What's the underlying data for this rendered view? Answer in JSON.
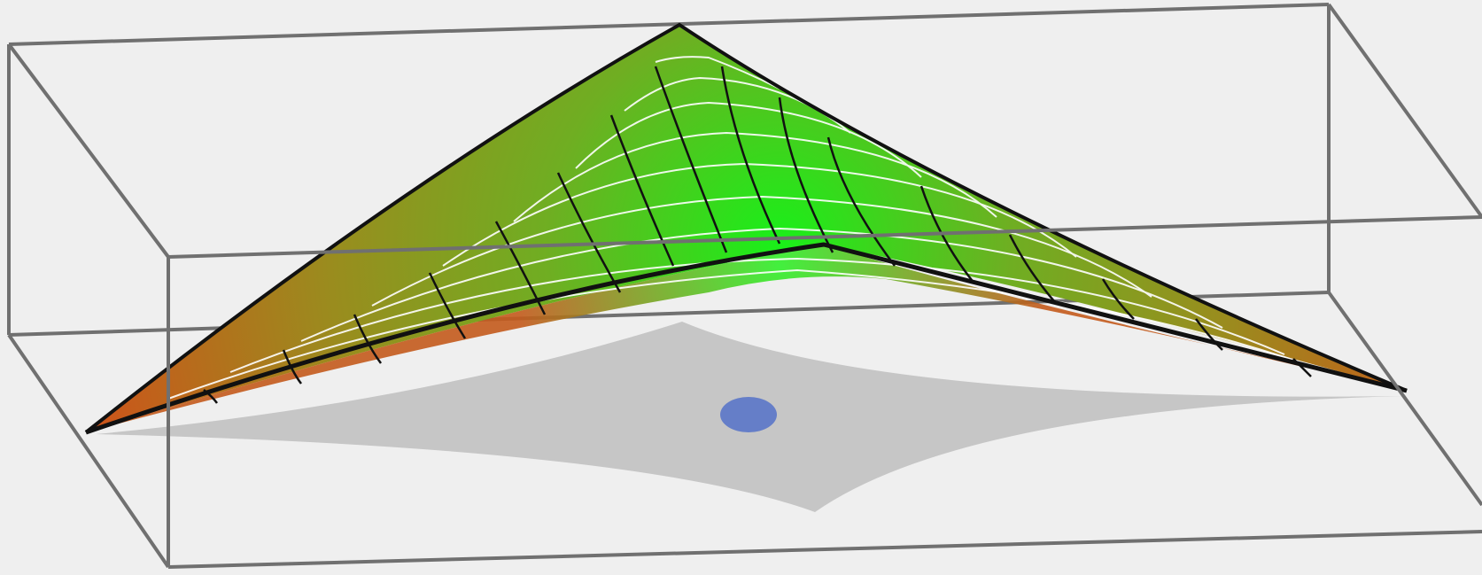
{
  "figure": {
    "kind": "3d-surface-plot",
    "description_visible": false,
    "background_color": "#efefef",
    "box_edge_color": "#6e6e6e",
    "surface_top_color": "#c2591b",
    "surface_mid_color": "#6fae22",
    "surface_center_color": "#19f019",
    "mesh_line_color": "#111111",
    "contour_line_color": "#ffffff",
    "shadow_color": "#c6c6c6",
    "point_color": "#5a76c8"
  }
}
